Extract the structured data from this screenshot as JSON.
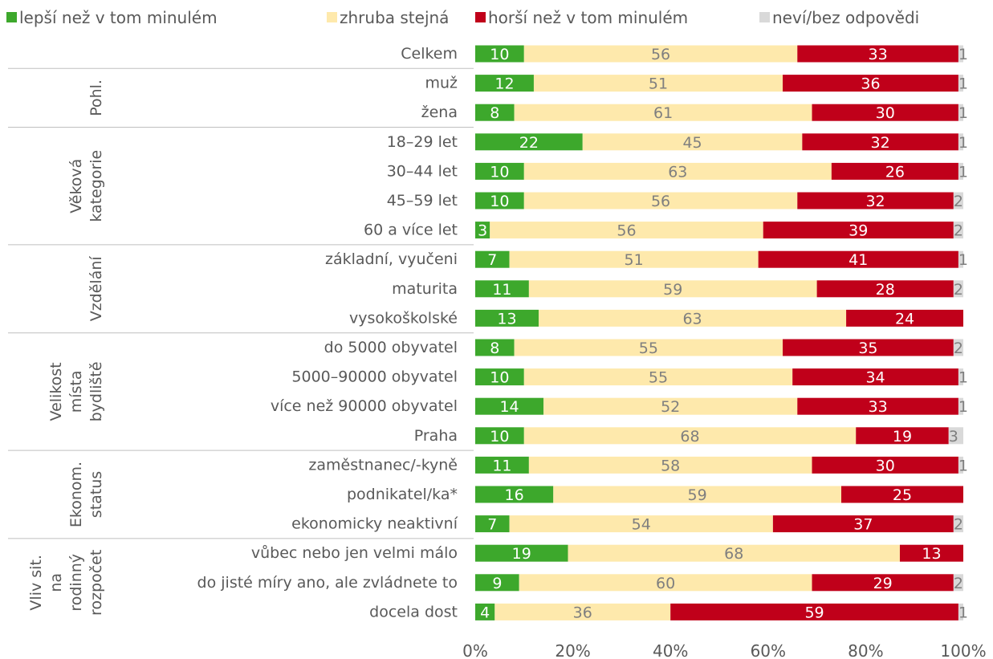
{
  "chart_data": {
    "type": "stacked-bar-horizontal",
    "groups": [
      {
        "categories": [
          "Celkem"
        ]
      },
      {
        "lines": [
          "Pohl."
        ],
        "categories": [
          "muž",
          "žena"
        ]
      },
      {
        "lines": [
          "Věková",
          "kategorie"
        ],
        "categories": [
          "18–29 let",
          "30–44 let",
          "45–59 let",
          "60 a více let"
        ]
      },
      {
        "lines": [
          "Vzdělání"
        ],
        "categories": [
          "základní, vyučeni",
          "maturita",
          "vysokoškolské"
        ]
      },
      {
        "lines": [
          "Velikost",
          "místa",
          "bydliště"
        ],
        "categories": [
          "do 5000 obyvatel",
          "5000–90000 obyvatel",
          "více než 90000 obyvatel",
          "Praha"
        ]
      },
      {
        "lines": [
          "Ekonom.",
          "status"
        ],
        "categories": [
          "zaměstnanec/-kyně",
          "podnikatel/ka*",
          "ekonomicky neaktivní"
        ]
      },
      {
        "lines": [
          "Vliv sit.",
          "na",
          "rodinný",
          "rozpočet"
        ],
        "categories": [
          "vůbec nebo jen velmi málo",
          "do jisté míry ano, ale zvládnete to",
          "docela dost"
        ]
      }
    ],
    "series": [
      {
        "name": "lepší než v tom minulém",
        "color": "#3da82c",
        "label_color": "#ffffff",
        "values": [
          10,
          12,
          8,
          22,
          10,
          10,
          3,
          7,
          11,
          13,
          8,
          10,
          14,
          10,
          11,
          16,
          7,
          19,
          9,
          4
        ]
      },
      {
        "name": "zhruba stejná",
        "color": "#fee9ac",
        "label_color": "#7f7f7f",
        "values": [
          56,
          51,
          61,
          45,
          63,
          56,
          56,
          51,
          59,
          63,
          55,
          55,
          52,
          68,
          58,
          59,
          54,
          68,
          60,
          36
        ]
      },
      {
        "name": "horší než v tom minulém",
        "color": "#c0001a",
        "label_color": "#ffffff",
        "values": [
          33,
          36,
          30,
          32,
          26,
          32,
          39,
          41,
          28,
          24,
          35,
          34,
          33,
          19,
          30,
          25,
          37,
          13,
          29,
          59
        ]
      },
      {
        "name": "neví/bez odpovědi",
        "color": "#d9d9d9",
        "label_color": "#7f7f7f",
        "values": [
          1,
          1,
          1,
          1,
          1,
          2,
          2,
          1,
          2,
          null,
          2,
          1,
          1,
          3,
          1,
          null,
          2,
          null,
          2,
          1
        ]
      }
    ],
    "xlim": [
      0,
      100
    ],
    "xticks": [
      {
        "value": 0,
        "label": "0%"
      },
      {
        "value": 20,
        "label": "20%"
      },
      {
        "value": 40,
        "label": "40%"
      },
      {
        "value": 60,
        "label": "60%"
      },
      {
        "value": 80,
        "label": "80%"
      },
      {
        "value": 100,
        "label": "100%"
      }
    ]
  }
}
